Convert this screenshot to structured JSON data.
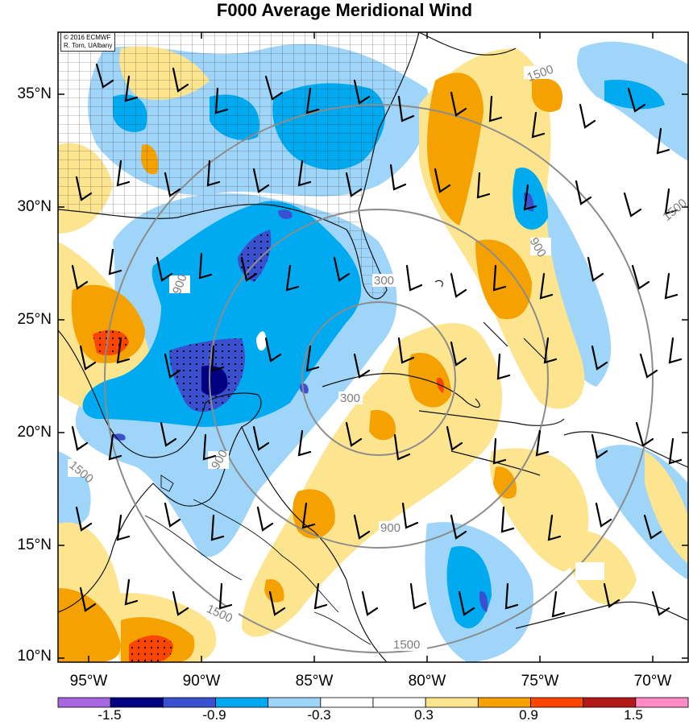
{
  "title": "F000 Average Meridional Wind",
  "credit": [
    "© 2016 ECMWF",
    "R. Torn, UAlbany"
  ],
  "lat_labels": [
    "35°N",
    "30°N",
    "25°N",
    "20°N",
    "15°N",
    "10°N"
  ],
  "lon_labels": [
    "95°W",
    "90°W",
    "85°W",
    "80°W",
    "75°W",
    "70°W"
  ],
  "contour_labels": [
    "300",
    "300",
    "900",
    "900",
    "900",
    "900",
    "1500",
    "1500",
    "1500",
    "1500",
    "1500"
  ],
  "colorbar": {
    "colors": [
      "#a666e0",
      "#000080",
      "#3b4fd1",
      "#00aaf0",
      "#9fd5f8",
      "#ffffff",
      "#ffffff",
      "#fde48f",
      "#f5a200",
      "#ff4500",
      "#b21a1a",
      "#ff8ac6"
    ],
    "labels": [
      "-1.5",
      "-0.9",
      "-0.3",
      "0.3",
      "0.9",
      "1.5"
    ]
  }
}
